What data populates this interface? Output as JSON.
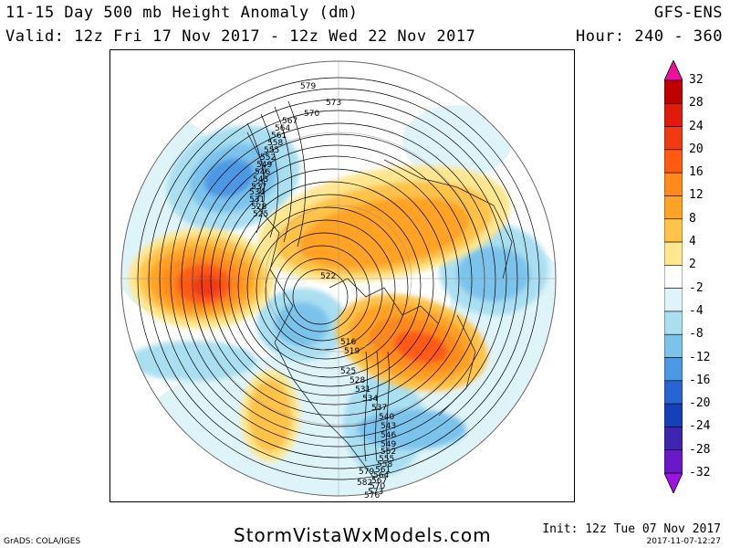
{
  "header": {
    "title": "11-15 Day 500 mb Height Anomaly (dm)",
    "valid": "Valid: 12z Fri 17 Nov 2017 - 12z Wed 22 Nov 2017",
    "model": "GFS-ENS",
    "hour": "Hour: 240 - 360"
  },
  "colorbar": {
    "levels": [
      "32",
      "28",
      "24",
      "20",
      "16",
      "12",
      "8",
      "4",
      "2",
      "-2",
      "-4",
      "-8",
      "-12",
      "-16",
      "-20",
      "-24",
      "-28",
      "-32"
    ],
    "colors": [
      "#ee0f9b",
      "#c00000",
      "#e01b0b",
      "#f03a12",
      "#ff5a12",
      "#ff8a1c",
      "#ffa326",
      "#ffc34a",
      "#ffe690",
      "#ffffff",
      "#dff4f9",
      "#a9dff0",
      "#7cc3ec",
      "#4d98e4",
      "#2965d2",
      "#1540b8",
      "#3d25b0",
      "#6a18c8",
      "#9d14e0"
    ]
  },
  "contour_labels": [
    "579",
    "573",
    "570",
    "567",
    "564",
    "561",
    "558",
    "555",
    "552",
    "549",
    "546",
    "543",
    "537",
    "534",
    "531",
    "528",
    "525",
    "522",
    "516",
    "519",
    "525",
    "528",
    "531",
    "534",
    "537",
    "540",
    "543",
    "546",
    "549",
    "552",
    "555",
    "558",
    "561",
    "564",
    "567",
    "570",
    "573",
    "576",
    "579",
    "582"
  ],
  "footer": {
    "site": "StormVistaWxModels.com",
    "grads": "GrADS: COLA/IGES",
    "init": "Init: 12z Tue 07 Nov 2017",
    "stamp": "2017-11-07-12:27"
  }
}
